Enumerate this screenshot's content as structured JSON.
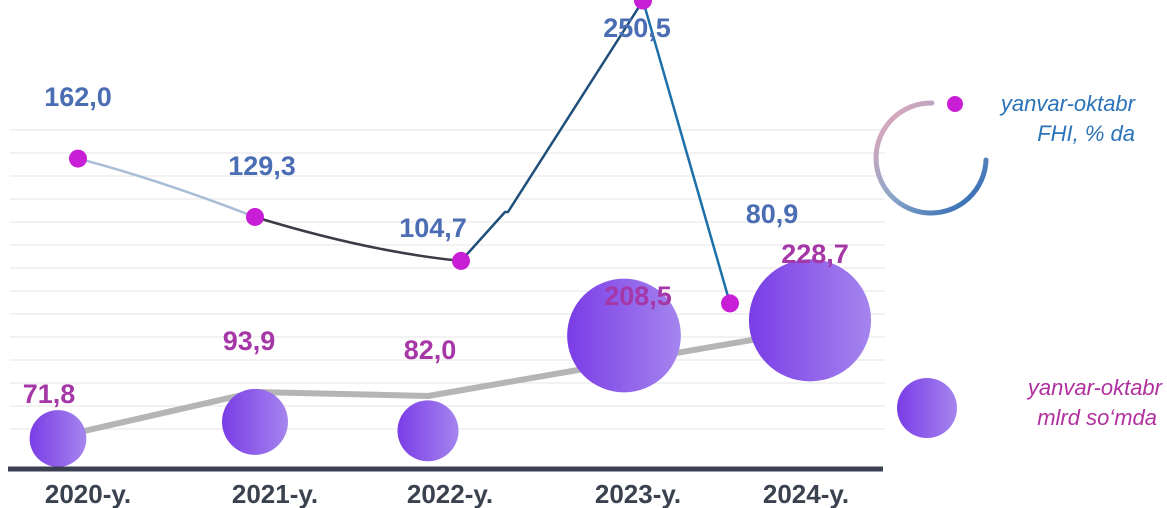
{
  "chart_data": {
    "type": "line",
    "categories": [
      "2020-y.",
      "2021-y.",
      "2022-y.",
      "2023-y.",
      "2024-y."
    ],
    "series": [
      {
        "name_lines": [
          "yanvar-oktabr",
          "FHI, % da"
        ],
        "kind": "line",
        "values": [
          162.0,
          129.3,
          104.7,
          250.5,
          80.9
        ],
        "labels": [
          "162,0",
          "129,3",
          "104,7",
          "250,5",
          "80,9"
        ],
        "color": "#c81ed6",
        "label_color": "#4a6db3"
      },
      {
        "name_lines": [
          "yanvar-oktabr",
          "mlrd  so‘mda"
        ],
        "kind": "bubble",
        "values": [
          71.8,
          93.9,
          82.0,
          208.5,
          228.7
        ],
        "labels": [
          "71,8",
          "93,9",
          "82,0",
          "208,5",
          "228,7"
        ],
        "color": "#8a5cf0",
        "label_color": "#a537a7"
      }
    ],
    "grid": true,
    "legend_position": "right"
  }
}
